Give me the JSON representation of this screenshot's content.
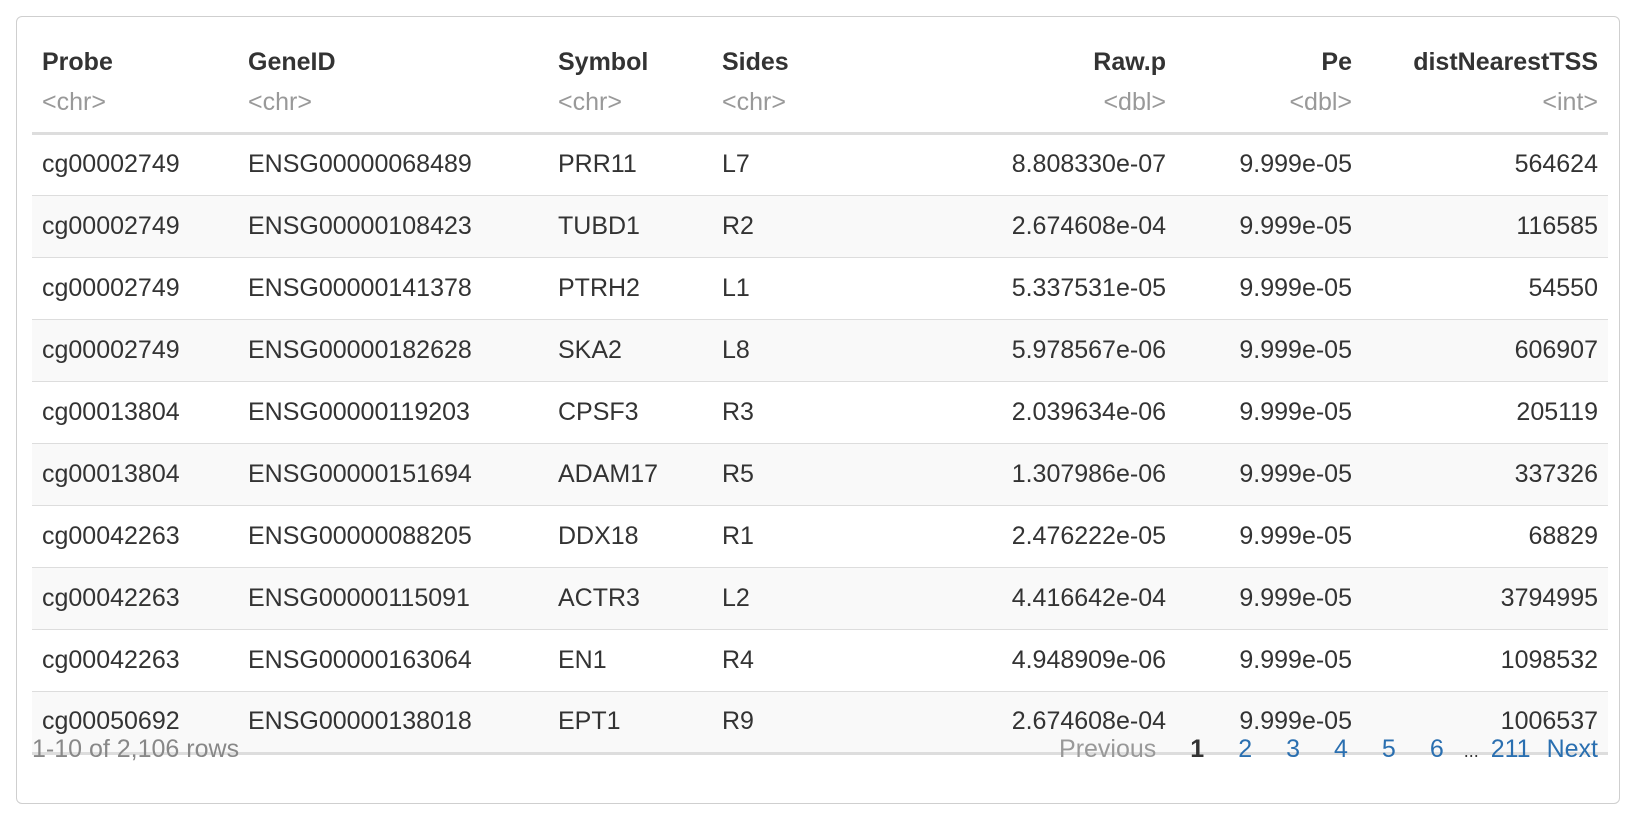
{
  "table": {
    "columns": [
      {
        "name": "Probe",
        "type": "<chr>",
        "align": "l"
      },
      {
        "name": "GeneID",
        "type": "<chr>",
        "align": "l"
      },
      {
        "name": "Symbol",
        "type": "<chr>",
        "align": "l"
      },
      {
        "name": "Sides",
        "type": "<chr>",
        "align": "l"
      },
      {
        "name": "Raw.p",
        "type": "<dbl>",
        "align": "r"
      },
      {
        "name": "Pe",
        "type": "<dbl>",
        "align": "r"
      },
      {
        "name": "distNearestTSS",
        "type": "<int>",
        "align": "r"
      }
    ],
    "rows": [
      [
        "cg00002749",
        "ENSG00000068489",
        "PRR11",
        "L7",
        "8.808330e-07",
        "9.999e-05",
        "564624"
      ],
      [
        "cg00002749",
        "ENSG00000108423",
        "TUBD1",
        "R2",
        "2.674608e-04",
        "9.999e-05",
        "116585"
      ],
      [
        "cg00002749",
        "ENSG00000141378",
        "PTRH2",
        "L1",
        "5.337531e-05",
        "9.999e-05",
        "54550"
      ],
      [
        "cg00002749",
        "ENSG00000182628",
        "SKA2",
        "L8",
        "5.978567e-06",
        "9.999e-05",
        "606907"
      ],
      [
        "cg00013804",
        "ENSG00000119203",
        "CPSF3",
        "R3",
        "2.039634e-06",
        "9.999e-05",
        "205119"
      ],
      [
        "cg00013804",
        "ENSG00000151694",
        "ADAM17",
        "R5",
        "1.307986e-06",
        "9.999e-05",
        "337326"
      ],
      [
        "cg00042263",
        "ENSG00000088205",
        "DDX18",
        "R1",
        "2.476222e-05",
        "9.999e-05",
        "68829"
      ],
      [
        "cg00042263",
        "ENSG00000115091",
        "ACTR3",
        "L2",
        "4.416642e-04",
        "9.999e-05",
        "3794995"
      ],
      [
        "cg00042263",
        "ENSG00000163064",
        "EN1",
        "R4",
        "4.948909e-06",
        "9.999e-05",
        "1098532"
      ],
      [
        "cg00050692",
        "ENSG00000138018",
        "EPT1",
        "R9",
        "2.674608e-04",
        "9.999e-05",
        "1006537"
      ]
    ]
  },
  "footer": {
    "row_info": "1-10 of 2,106 rows",
    "pager": {
      "previous": "Previous",
      "current": "1",
      "pages": [
        "2",
        "3",
        "4",
        "5",
        "6"
      ],
      "ellipsis": "...",
      "last": "211",
      "next": "Next"
    }
  },
  "colors": {
    "link": "#2a6fb0",
    "muted": "#999999",
    "stripe": "#f9f9f9",
    "border": "#dddddd"
  }
}
